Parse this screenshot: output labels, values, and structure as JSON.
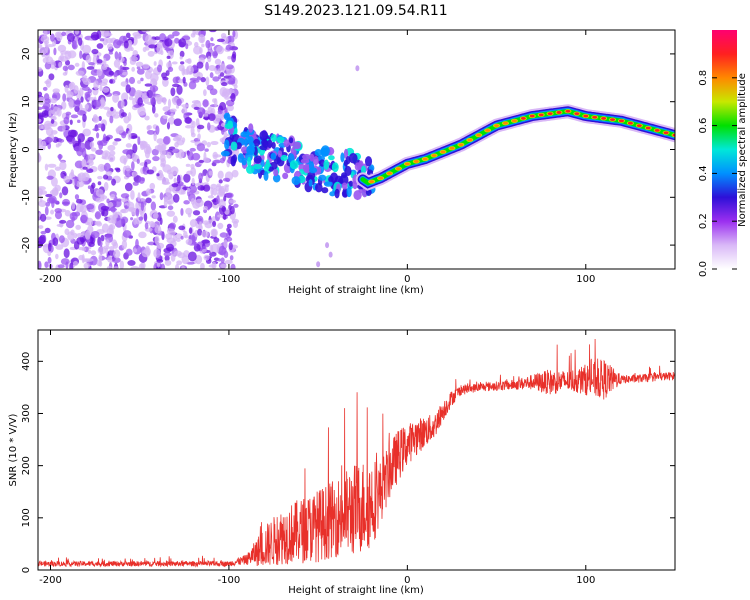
{
  "title": "S149.2023.121.09.54.R11",
  "chart_data": [
    {
      "type": "heatmap",
      "name": "spectrogram",
      "xlabel": "Height of straight line (km)",
      "ylabel": "Frequency (Hz)",
      "xlim": [
        -207,
        150
      ],
      "ylim": [
        -25,
        25
      ],
      "x_ticks": [
        -200,
        -100,
        0,
        100
      ],
      "y_ticks": [
        -20,
        -10,
        0,
        10,
        20
      ],
      "noise_region_x": [
        -207,
        -100
      ],
      "signal_track": {
        "x": [
          -100,
          -80,
          -60,
          -40,
          -30,
          -22,
          -15,
          -5,
          0,
          10,
          20,
          30,
          40,
          50,
          60,
          70,
          80,
          90,
          100,
          110,
          120,
          130,
          140,
          150
        ],
        "y": [
          2,
          -1,
          -3,
          -5,
          -5,
          -7,
          -6,
          -4,
          -3,
          -2,
          -0.5,
          1,
          3,
          5,
          6,
          7,
          7.5,
          8,
          7,
          6.5,
          6,
          5,
          4,
          3
        ]
      }
    },
    {
      "type": "line",
      "name": "snr",
      "xlabel": "Height of straight line (km)",
      "ylabel": "SNR (10 * V/V)",
      "xlim": [
        -207,
        150
      ],
      "ylim": [
        0,
        460
      ],
      "x_ticks": [
        -200,
        -100,
        0,
        100
      ],
      "y_ticks": [
        0,
        100,
        200,
        300,
        400
      ],
      "color": "#e8302a",
      "envelope": {
        "x": [
          -207,
          -100,
          -90,
          -80,
          -70,
          -50,
          -40,
          -30,
          -20,
          -15,
          -10,
          -5,
          0,
          5,
          10,
          15,
          20,
          25,
          30,
          40,
          60,
          70,
          80,
          90,
          100,
          110,
          120,
          130,
          140,
          150
        ],
        "y": [
          12,
          12,
          20,
          45,
          65,
          85,
          100,
          115,
          130,
          150,
          190,
          220,
          240,
          255,
          265,
          275,
          305,
          330,
          345,
          350,
          355,
          360,
          360,
          362,
          365,
          365,
          365,
          367,
          370,
          372
        ],
        "spread": [
          5,
          5,
          10,
          40,
          55,
          70,
          75,
          90,
          90,
          60,
          55,
          50,
          40,
          35,
          30,
          25,
          20,
          15,
          10,
          8,
          10,
          15,
          25,
          20,
          30,
          40,
          8,
          8,
          8,
          8
        ]
      }
    }
  ],
  "colorbar": {
    "label": "Normalized spectral amplitude",
    "ticks": [
      "0.0",
      "0.2",
      "0.4",
      "0.6",
      "0.8"
    ],
    "tick_values": [
      0.0,
      0.2,
      0.4,
      0.6,
      0.8
    ],
    "range": [
      0,
      1
    ],
    "colors": [
      "#ffffff",
      "#d9b8f7",
      "#9b2ff0",
      "#2d10d8",
      "#0090ff",
      "#00e8d8",
      "#00e000",
      "#c8e800",
      "#ff8800",
      "#ff2020",
      "#ff0070"
    ]
  }
}
